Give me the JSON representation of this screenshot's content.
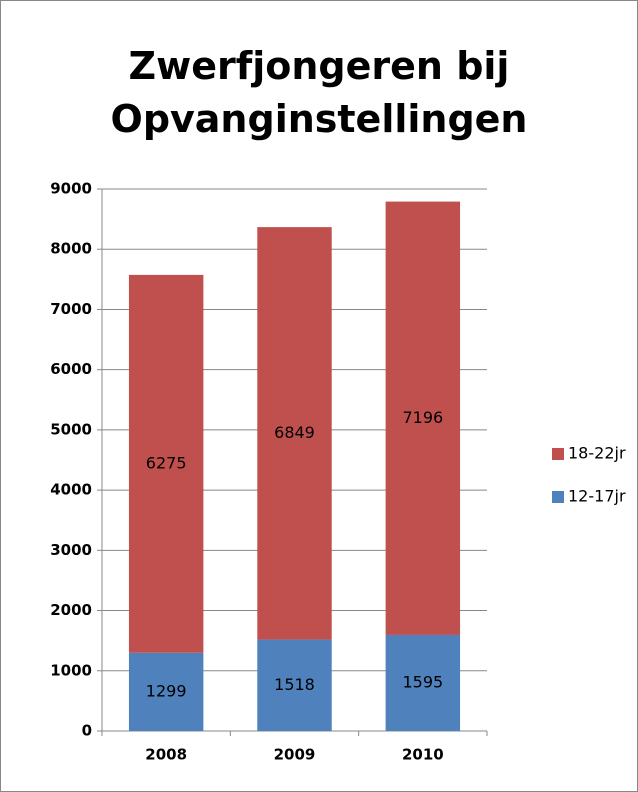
{
  "chart_data": {
    "type": "stacked_bar",
    "title": "Zwerfjongeren bij Opvanginstellingen",
    "categories": [
      "2008",
      "2009",
      "2010"
    ],
    "series": [
      {
        "name": "12-17jr",
        "color": "#4f81bd",
        "values": [
          1299,
          1518,
          1595
        ]
      },
      {
        "name": "18-22jr",
        "color": "#c0504d",
        "values": [
          6275,
          6849,
          7196
        ]
      }
    ],
    "ylim": [
      0,
      9000
    ],
    "yticks": [
      0,
      1000,
      2000,
      3000,
      4000,
      5000,
      6000,
      7000,
      8000,
      9000
    ],
    "grid": true,
    "legend": "right"
  }
}
